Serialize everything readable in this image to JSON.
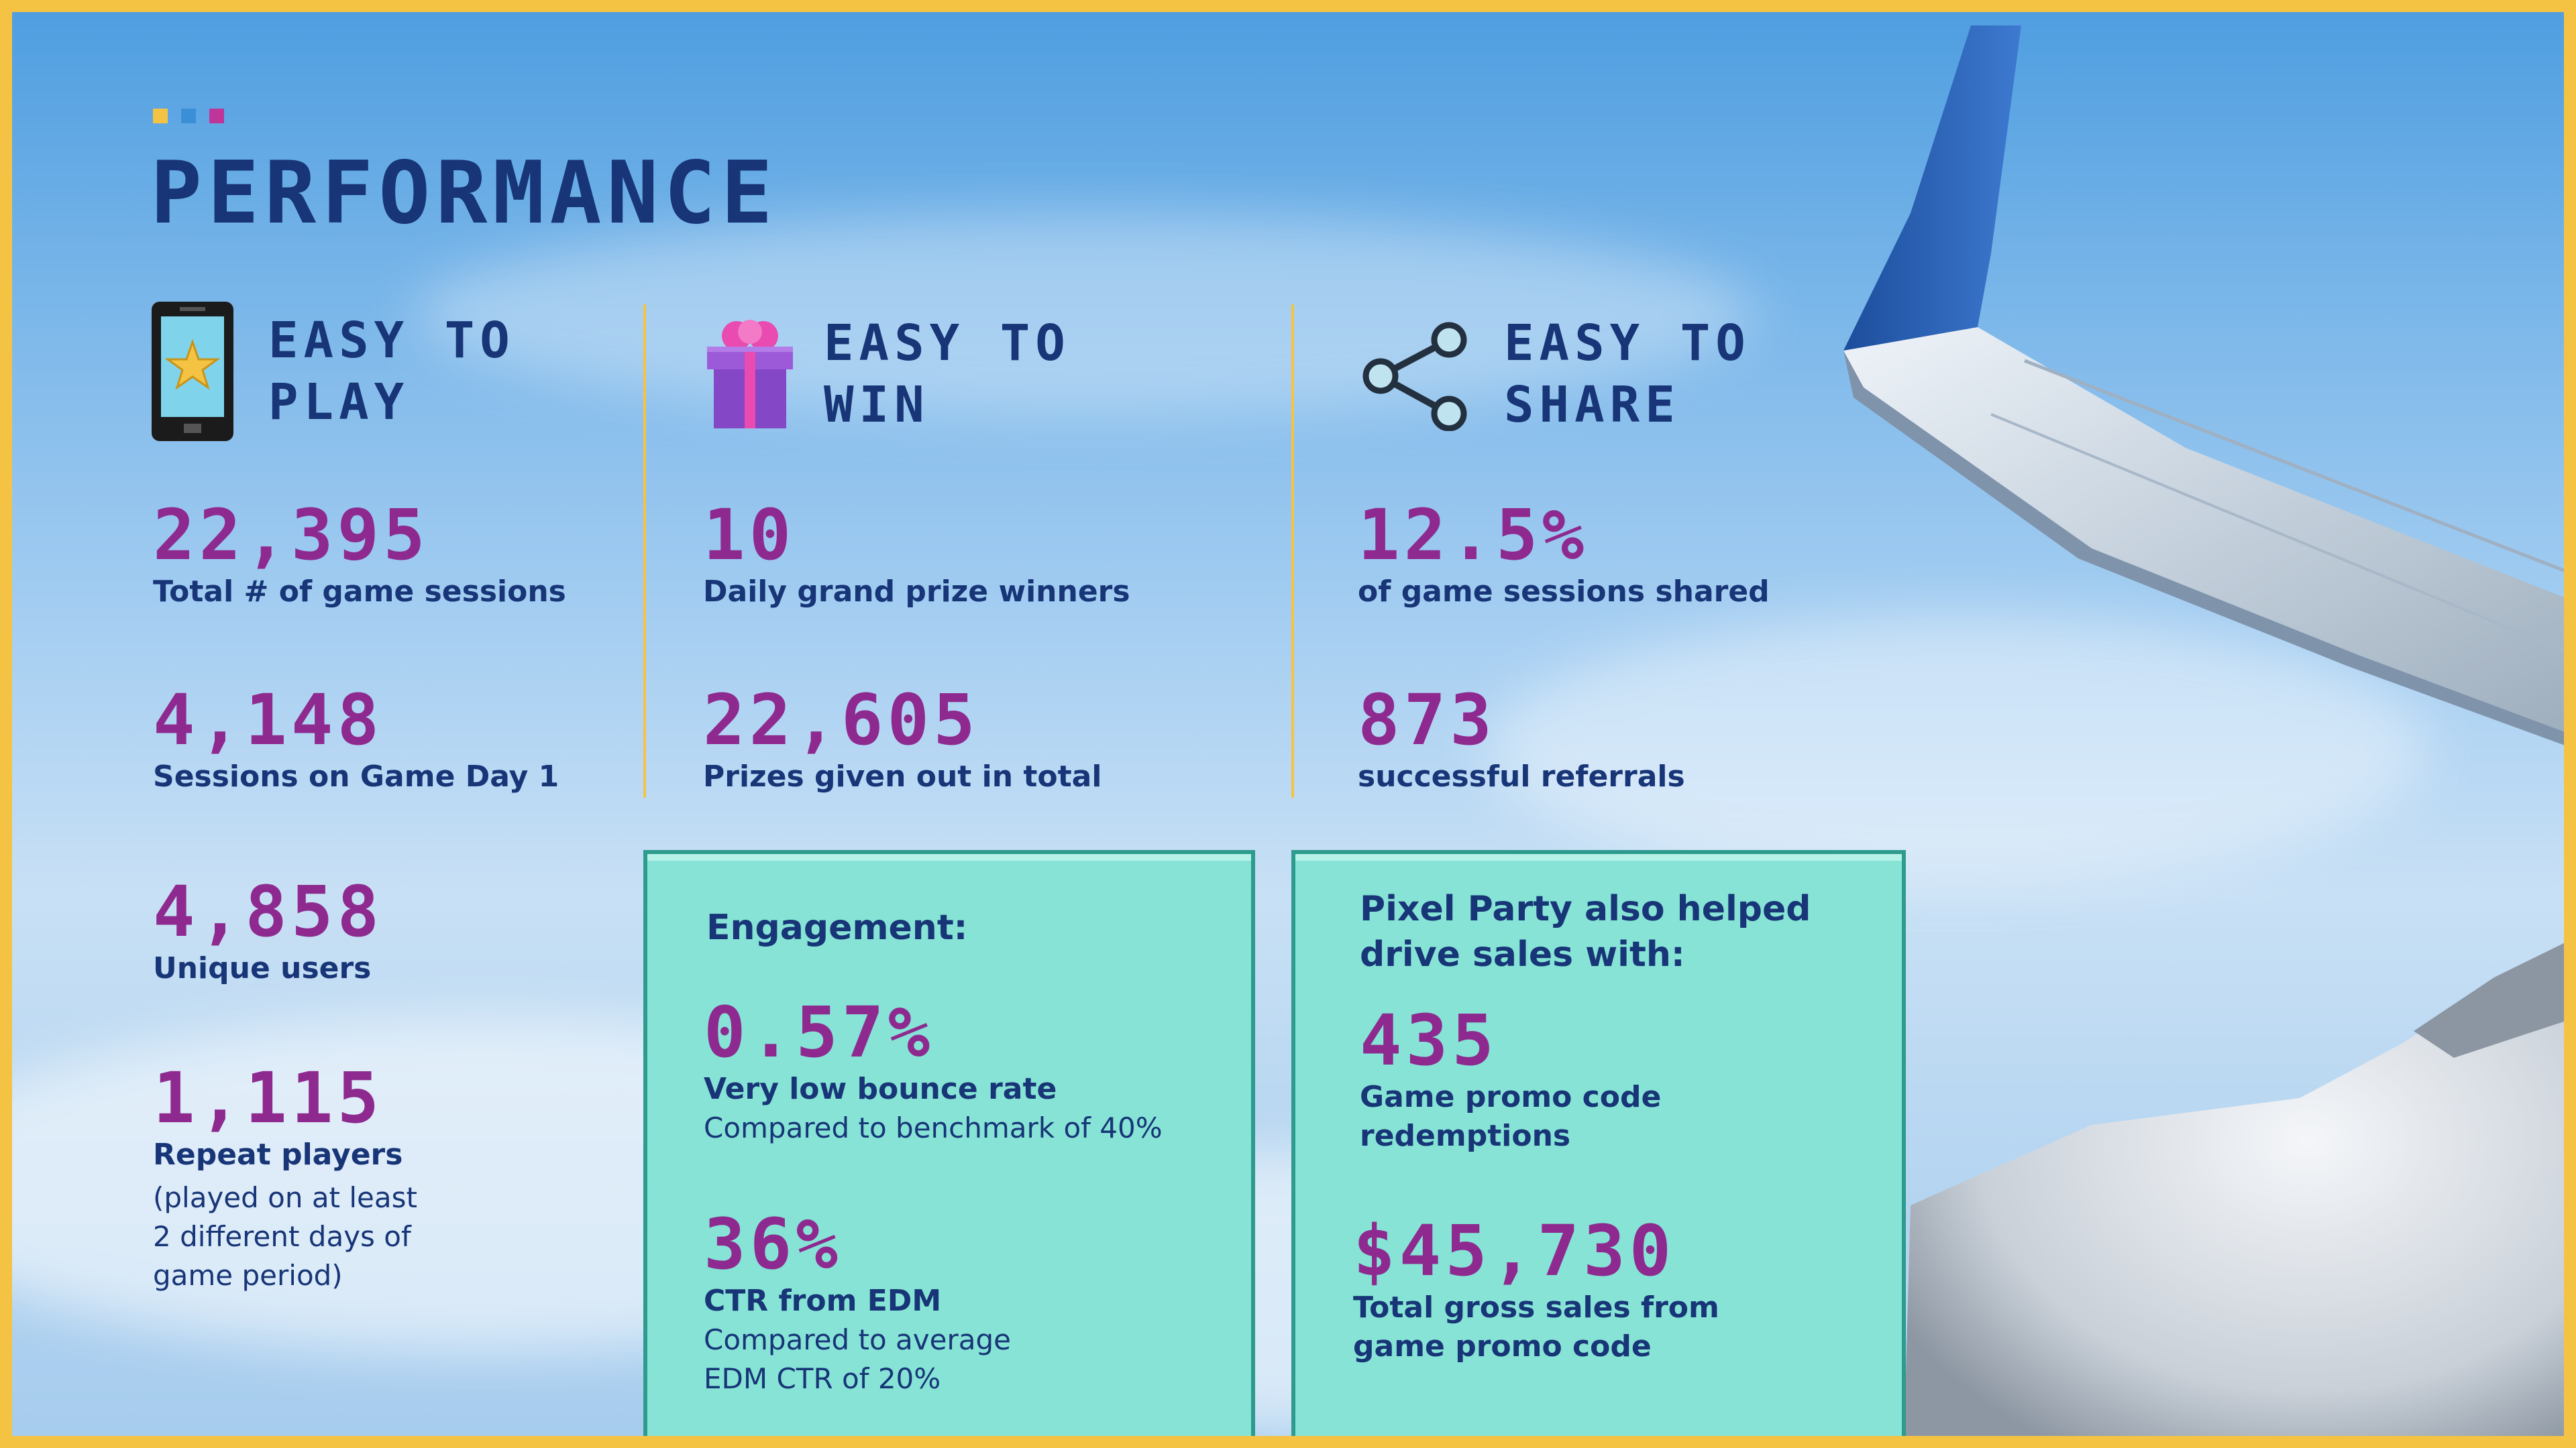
{
  "title": "PERFORMANCE",
  "colors": {
    "accent_yellow": "#f5c344",
    "accent_blue": "#3a8fd6",
    "accent_pink": "#c0359a",
    "navy": "#173577",
    "purple": "#8e2a8f",
    "teal_box": "#86e3d5"
  },
  "columns": [
    {
      "heading": "EASY TO\nPLAY",
      "icon": "phone-star-icon",
      "stats": [
        {
          "value": "22,395",
          "label": "Total # of game sessions"
        },
        {
          "value": "4,148",
          "label": "Sessions on Game Day 1"
        },
        {
          "value": "4,858",
          "label": "Unique users"
        },
        {
          "value": "1,115",
          "label": "Repeat players",
          "sub": "(played on at least\n2 different days of\ngame period)"
        }
      ]
    },
    {
      "heading": "EASY TO\nWIN",
      "icon": "gift-box-icon",
      "stats": [
        {
          "value": "10",
          "label": "Daily grand prize winners"
        },
        {
          "value": "22,605",
          "label": "Prizes given out in total"
        }
      ]
    },
    {
      "heading": "EASY TO\nSHARE",
      "icon": "share-icon",
      "stats": [
        {
          "value": "12.5%",
          "label": "of game sessions shared"
        },
        {
          "value": "873",
          "label": "successful referrals"
        }
      ]
    }
  ],
  "engagement_box": {
    "heading": "Engagement:",
    "stats": [
      {
        "value": "0.57%",
        "label": "Very low bounce rate",
        "sub": "Compared to benchmark of 40%"
      },
      {
        "value": "36%",
        "label": "CTR from EDM",
        "sub": "Compared to average\nEDM CTR of 20%"
      }
    ]
  },
  "sales_box": {
    "heading": "Pixel Party also helped\ndrive sales with:",
    "stats": [
      {
        "value": "435",
        "label": "Game promo code\nredemptions"
      },
      {
        "value": "$45,730",
        "label": "Total gross sales from\ngame promo code"
      }
    ]
  }
}
